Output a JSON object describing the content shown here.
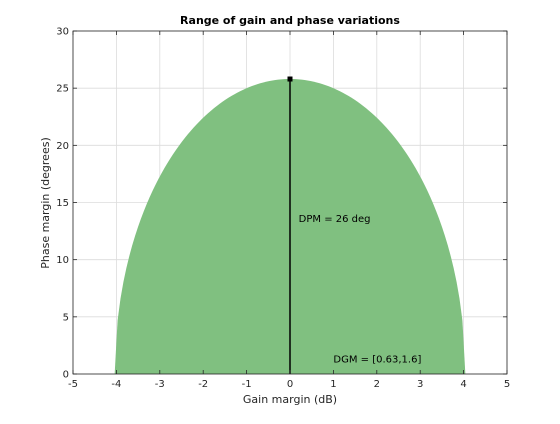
{
  "chart_data": {
    "type": "area",
    "title": "Range of gain and phase variations",
    "xlabel": "Gain margin (dB)",
    "ylabel": "Phase margin (degrees)",
    "xlim": [
      -5,
      5
    ],
    "ylim": [
      0,
      30
    ],
    "xticks": [
      -5,
      -4,
      -3,
      -2,
      -1,
      0,
      1,
      2,
      3,
      4,
      5
    ],
    "yticks": [
      0,
      5,
      10,
      15,
      20,
      25,
      30
    ],
    "grid": true,
    "region": {
      "shape": "half-ellipse",
      "x_half_width": 4.04,
      "peak_y": 25.8,
      "color": "#80c080"
    },
    "marker": {
      "x": 0,
      "y": 25.8
    },
    "annotations": [
      {
        "text": "DPM = 26 deg",
        "x": 0.2,
        "y": 13.3
      },
      {
        "text": "DGM = [0.63,1.6]",
        "x": 1.0,
        "y": 1.0
      }
    ]
  }
}
